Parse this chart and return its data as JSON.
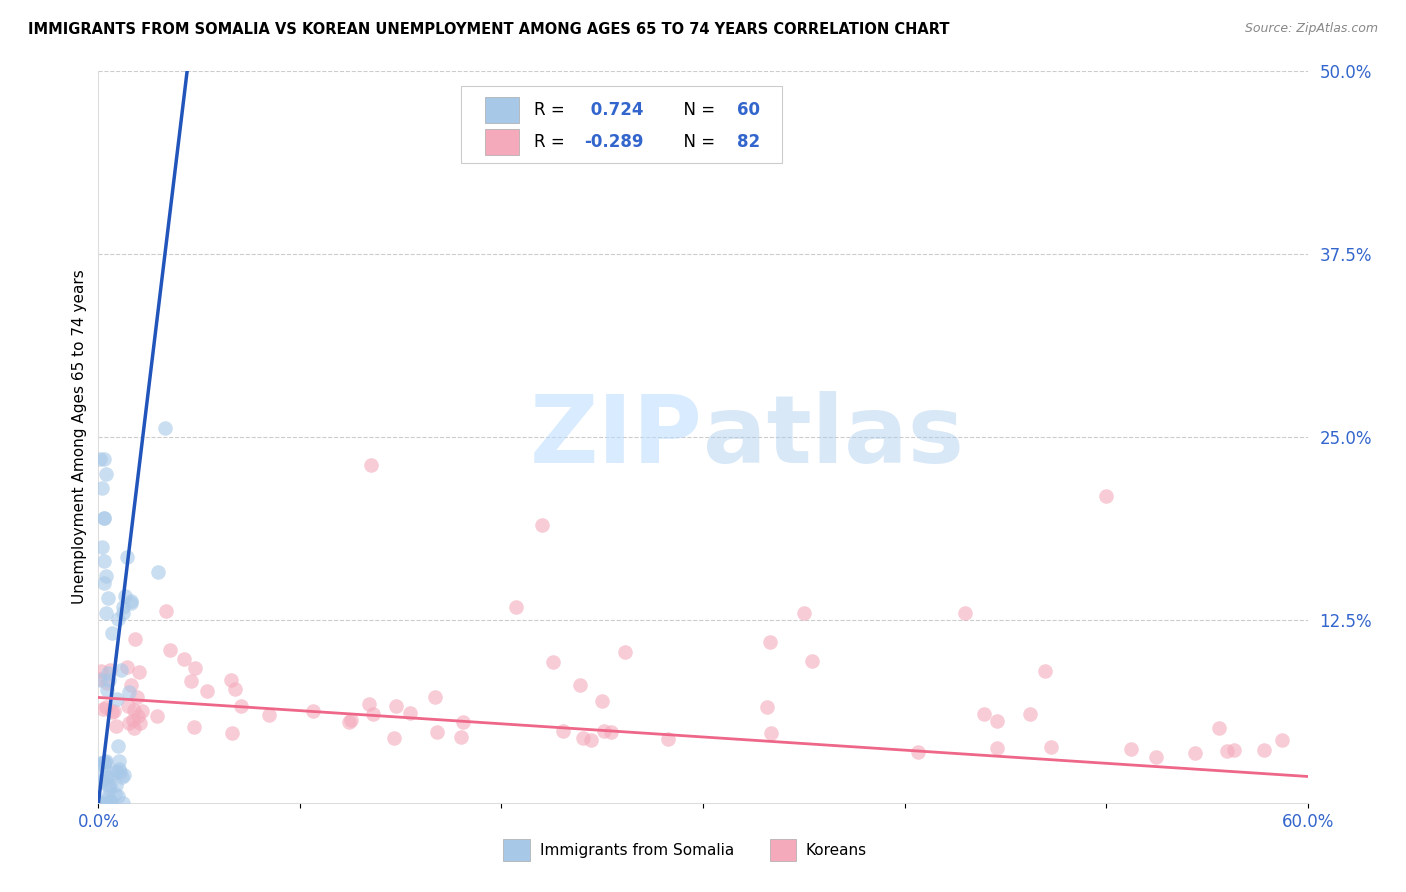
{
  "title": "IMMIGRANTS FROM SOMALIA VS KOREAN UNEMPLOYMENT AMONG AGES 65 TO 74 YEARS CORRELATION CHART",
  "source": "Source: ZipAtlas.com",
  "ylabel": "Unemployment Among Ages 65 to 74 years",
  "legend_labels": [
    "Immigrants from Somalia",
    "Koreans"
  ],
  "r_somalia": 0.724,
  "n_somalia": 60,
  "r_korean": -0.289,
  "n_korean": 82,
  "xlim": [
    0.0,
    0.6
  ],
  "ylim": [
    0.0,
    0.5
  ],
  "color_somalia": "#A8C8E8",
  "color_korean": "#F4AABB",
  "color_line_somalia": "#2255BB",
  "color_line_korean": "#EE6688",
  "color_rn": "#3366CC",
  "background_color": "#FFFFFF",
  "grid_color": "#CCCCCC",
  "watermark_zip": "ZIP",
  "watermark_atlas": "atlas"
}
